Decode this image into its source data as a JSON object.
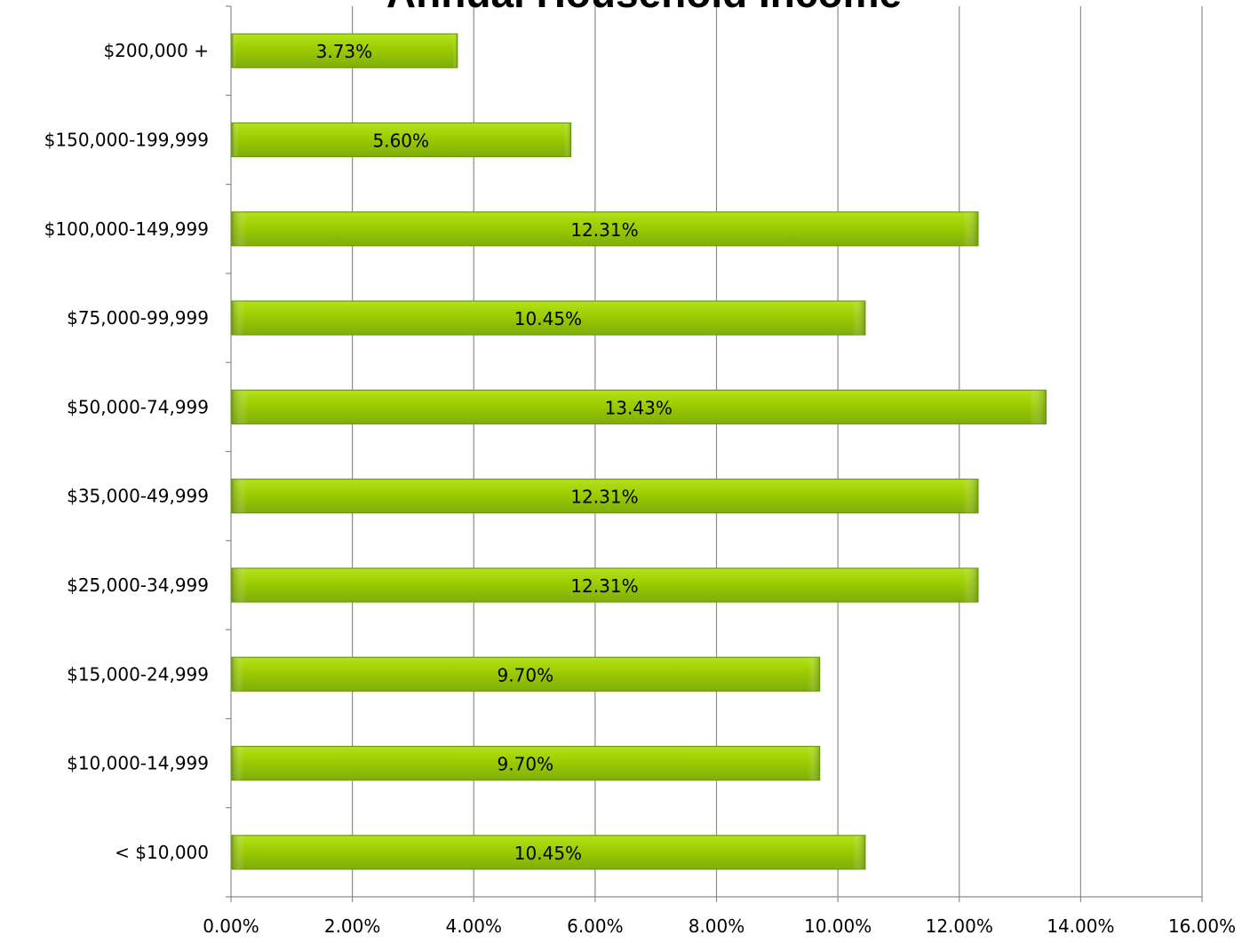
{
  "chart_data": {
    "type": "bar",
    "orientation": "horizontal",
    "title": "Annual Household Income",
    "xlabel": "",
    "ylabel": "",
    "categories": [
      "< $10,000",
      "$10,000-14,999",
      "$15,000-24,999",
      "$25,000-34,999",
      "$35,000-49,999",
      "$50,000-74,999",
      "$75,000-99,999",
      "$100,000-149,999",
      "$150,000-199,999",
      "$200,000 +"
    ],
    "values": [
      10.45,
      9.7,
      9.7,
      12.31,
      12.31,
      13.43,
      10.45,
      12.31,
      5.6,
      3.73
    ],
    "data_labels": [
      "10.45%",
      "9.70%",
      "9.70%",
      "12.31%",
      "12.31%",
      "13.43%",
      "10.45%",
      "12.31%",
      "5.60%",
      "3.73%"
    ],
    "xlim": [
      0,
      16
    ],
    "x_ticks": [
      0,
      2,
      4,
      6,
      8,
      10,
      12,
      14,
      16
    ],
    "x_tick_labels": [
      "0.00%",
      "2.00%",
      "4.00%",
      "6.00%",
      "8.00%",
      "10.00%",
      "12.00%",
      "14.00%",
      "16.00%"
    ],
    "grid": "vertical",
    "legend": "none",
    "colors": {
      "bar_top": "#b4e21c",
      "bar_mid": "#9ccc00",
      "bar_bottom": "#7fad0c",
      "bar_edge": "#6c9a0a",
      "grid": "#8c8c8c"
    }
  }
}
